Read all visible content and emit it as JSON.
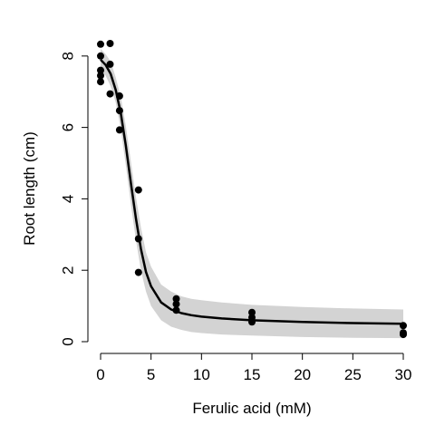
{
  "chart_data": {
    "type": "scatter",
    "xlabel": "Ferulic acid (mM)",
    "ylabel": "Root length (cm)",
    "xlim": [
      0,
      30
    ],
    "ylim": [
      0,
      8.3
    ],
    "x_ticks": [
      "0",
      "5",
      "10",
      "15",
      "20",
      "25",
      "30"
    ],
    "y_ticks": [
      "0",
      "2",
      "4",
      "6",
      "8"
    ],
    "grid": false,
    "points": [
      {
        "x": 0,
        "y": 8.33
      },
      {
        "x": 0,
        "y": 8.0
      },
      {
        "x": 0,
        "y": 7.6
      },
      {
        "x": 0,
        "y": 7.45
      },
      {
        "x": 0,
        "y": 7.28
      },
      {
        "x": 0.94,
        "y": 8.35
      },
      {
        "x": 0.94,
        "y": 7.77
      },
      {
        "x": 0.94,
        "y": 6.94
      },
      {
        "x": 1.88,
        "y": 6.88
      },
      {
        "x": 1.88,
        "y": 6.47
      },
      {
        "x": 1.88,
        "y": 5.93
      },
      {
        "x": 3.75,
        "y": 4.25
      },
      {
        "x": 3.75,
        "y": 2.88
      },
      {
        "x": 3.75,
        "y": 1.94
      },
      {
        "x": 7.5,
        "y": 1.2
      },
      {
        "x": 7.5,
        "y": 1.05
      },
      {
        "x": 7.5,
        "y": 0.88
      },
      {
        "x": 15,
        "y": 0.82
      },
      {
        "x": 15,
        "y": 0.68
      },
      {
        "x": 15,
        "y": 0.55
      },
      {
        "x": 30,
        "y": 0.45
      },
      {
        "x": 30,
        "y": 0.25
      },
      {
        "x": 30,
        "y": 0.2
      }
    ],
    "fit": {
      "x": [
        0,
        0.5,
        1,
        1.5,
        2,
        2.5,
        3,
        3.5,
        4,
        4.5,
        5,
        6,
        7,
        8,
        9,
        10,
        12,
        15,
        20,
        25,
        30
      ],
      "y": [
        7.9,
        7.75,
        7.5,
        7.05,
        6.4,
        5.5,
        4.45,
        3.45,
        2.6,
        1.95,
        1.55,
        1.1,
        0.9,
        0.8,
        0.74,
        0.7,
        0.65,
        0.6,
        0.55,
        0.52,
        0.5
      ],
      "lower": [
        7.6,
        7.45,
        7.15,
        6.7,
        5.95,
        4.95,
        3.85,
        2.85,
        2.0,
        1.4,
        1.0,
        0.6,
        0.42,
        0.33,
        0.27,
        0.24,
        0.2,
        0.17,
        0.13,
        0.11,
        0.1
      ],
      "upper": [
        8.2,
        8.05,
        7.85,
        7.4,
        6.85,
        6.05,
        5.05,
        4.05,
        3.2,
        2.5,
        2.1,
        1.6,
        1.4,
        1.27,
        1.2,
        1.16,
        1.1,
        1.03,
        0.97,
        0.93,
        0.9
      ]
    },
    "colors": {
      "points": "#000000",
      "fit_line": "#000000",
      "band": "#d3d3d3",
      "axes": "#000000"
    }
  }
}
